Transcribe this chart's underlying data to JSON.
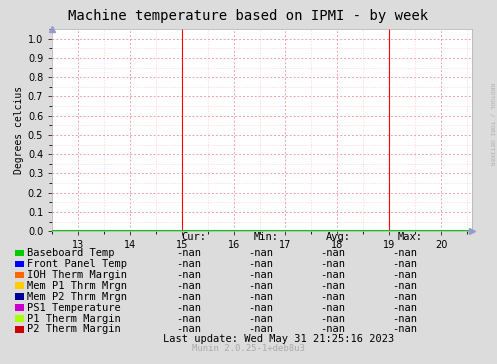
{
  "title": "Machine temperature based on IPMI - by week",
  "ylabel": "Degrees celcius",
  "right_label": "RRDTOOL / TOBI OETIKER",
  "xlim": [
    12.5,
    20.6
  ],
  "ylim": [
    0.0,
    1.05
  ],
  "yticks": [
    0.0,
    0.1,
    0.2,
    0.3,
    0.4,
    0.5,
    0.6,
    0.7,
    0.8,
    0.9,
    1.0
  ],
  "xticks": [
    13,
    14,
    15,
    16,
    17,
    18,
    19,
    20
  ],
  "bg_color": "#dcdcdc",
  "plot_bg_color": "#ffffff",
  "grid_major_color": "#f5a0a0",
  "grid_minor_color": "#fad4d4",
  "vline_x": [
    15.0,
    19.0
  ],
  "vline_color": "#ff0000",
  "legend_entries": [
    {
      "label": "Baseboard Temp",
      "color": "#00cc00"
    },
    {
      "label": "Front Panel Temp",
      "color": "#0000ff"
    },
    {
      "label": "IOH Therm Margin",
      "color": "#ff6600"
    },
    {
      "label": "Mem P1 Thrm Mrgn",
      "color": "#ffcc00"
    },
    {
      "label": "Mem P2 Thrm Mrgn",
      "color": "#000099"
    },
    {
      "label": "PS1 Temperature",
      "color": "#cc00cc"
    },
    {
      "label": "P1 Therm Margin",
      "color": "#aaff00"
    },
    {
      "label": "P2 Therm Margin",
      "color": "#cc0000"
    }
  ],
  "stats_header": [
    "Cur:",
    "Min:",
    "Avg:",
    "Max:"
  ],
  "stats_value": "-nan",
  "last_update": "Last update: Wed May 31 21:25:16 2023",
  "munin_version": "Munin 2.0.25-1+deb8u3",
  "font_family": "DejaVu Sans Mono",
  "title_fontsize": 10,
  "axis_fontsize": 7,
  "legend_fontsize": 7.5,
  "arrow_color": "#9999cc"
}
